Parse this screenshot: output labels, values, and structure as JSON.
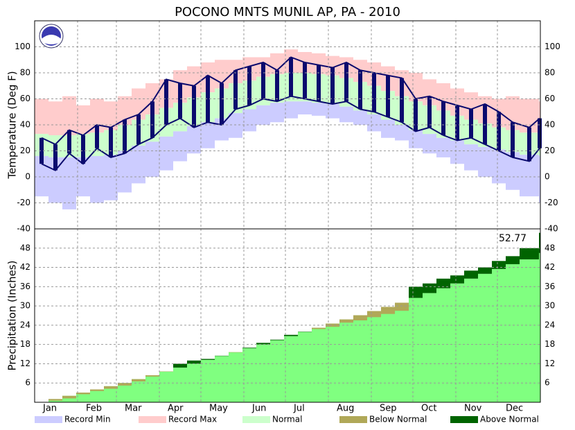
{
  "chart_data": {
    "type": "climate",
    "title": "POCONO MNTS MUNIL AP, PA - 2010",
    "x": [
      0,
      10,
      20,
      30,
      40,
      50,
      60,
      70,
      80,
      90,
      100,
      110,
      120,
      130,
      140,
      150,
      160,
      170,
      180,
      190,
      200,
      210,
      220,
      230,
      240,
      250,
      260,
      270,
      280,
      290,
      300,
      310,
      320,
      330,
      340,
      350,
      364
    ],
    "xlim": [
      0,
      365
    ],
    "xticks": [
      {
        "value": 0,
        "label": "Jan"
      },
      {
        "value": 31,
        "label": "Feb"
      },
      {
        "value": 59,
        "label": "Mar"
      },
      {
        "value": 90,
        "label": "Apr"
      },
      {
        "value": 120,
        "label": "May"
      },
      {
        "value": 151,
        "label": "Jun"
      },
      {
        "value": 181,
        "label": "Jul"
      },
      {
        "value": 212,
        "label": "Aug"
      },
      {
        "value": 243,
        "label": "Sep"
      },
      {
        "value": 273,
        "label": "Oct"
      },
      {
        "value": 304,
        "label": "Nov"
      },
      {
        "value": 334,
        "label": "Dec"
      }
    ],
    "temperature": {
      "ylabel": "Temperature (Deg F)",
      "ylim": [
        -40,
        120
      ],
      "yticks": [
        -40,
        -20,
        0,
        20,
        40,
        60,
        80,
        100
      ],
      "record_max": {
        "name": "Record Max",
        "color": "#ffcccc",
        "values": [
          60,
          58,
          62,
          55,
          60,
          58,
          62,
          68,
          72,
          75,
          82,
          85,
          88,
          90,
          90,
          92,
          92,
          95,
          98,
          96,
          95,
          93,
          92,
          90,
          88,
          85,
          82,
          80,
          75,
          72,
          68,
          65,
          62,
          60,
          62,
          60,
          58
        ]
      },
      "normal_high": {
        "color": "#ccffcc",
        "values": [
          33,
          32,
          32,
          33,
          34,
          36,
          40,
          44,
          48,
          53,
          57,
          61,
          65,
          68,
          72,
          74,
          77,
          79,
          80,
          80,
          79,
          78,
          76,
          73,
          70,
          66,
          62,
          58,
          55,
          51,
          47,
          44,
          41,
          38,
          36,
          34,
          33
        ]
      },
      "normal_low": {
        "color": "#ccccff",
        "values": [
          16,
          15,
          15,
          15,
          16,
          17,
          20,
          24,
          27,
          31,
          35,
          39,
          42,
          45,
          49,
          52,
          55,
          57,
          58,
          58,
          57,
          56,
          54,
          51,
          48,
          44,
          40,
          36,
          33,
          30,
          28,
          25,
          23,
          21,
          19,
          17,
          16
        ]
      },
      "record_min": {
        "name": "Record Min",
        "color": "#ccccff",
        "values": [
          -15,
          -20,
          -25,
          -15,
          -20,
          -18,
          -12,
          -5,
          0,
          5,
          12,
          18,
          22,
          28,
          30,
          35,
          40,
          42,
          45,
          48,
          47,
          45,
          42,
          40,
          35,
          30,
          28,
          22,
          18,
          15,
          10,
          5,
          0,
          -5,
          -10,
          -15,
          -20
        ]
      },
      "actual_high": {
        "color": "#0a0a6e",
        "values": [
          30,
          25,
          36,
          32,
          40,
          38,
          44,
          48,
          58,
          75,
          72,
          70,
          78,
          72,
          82,
          85,
          88,
          82,
          92,
          88,
          86,
          84,
          88,
          82,
          80,
          78,
          76,
          60,
          62,
          58,
          55,
          52,
          56,
          50,
          42,
          38,
          45
        ]
      },
      "actual_low": {
        "color": "#0a0a6e",
        "values": [
          10,
          5,
          18,
          10,
          22,
          15,
          18,
          25,
          30,
          40,
          45,
          38,
          42,
          40,
          52,
          55,
          60,
          58,
          62,
          60,
          58,
          56,
          58,
          52,
          50,
          46,
          42,
          35,
          38,
          32,
          28,
          30,
          25,
          20,
          15,
          12,
          22
        ]
      }
    },
    "precipitation": {
      "ylabel": "Precipitation (Inches)",
      "ylim": [
        0,
        54
      ],
      "yticks": [
        6,
        12,
        18,
        24,
        30,
        36,
        42,
        48
      ],
      "normal": {
        "name": "Normal",
        "color": "#80ff80",
        "values": [
          0,
          1.0,
          2.0,
          3.0,
          4.0,
          5.0,
          6.0,
          7.2,
          8.4,
          9.6,
          10.8,
          12.0,
          13.2,
          14.4,
          15.6,
          16.8,
          18.0,
          19.3,
          20.6,
          21.9,
          23.2,
          24.5,
          25.8,
          27.1,
          28.4,
          29.7,
          31.0,
          32.5,
          34.0,
          35.5,
          37.0,
          38.5,
          40.0,
          41.5,
          43.0,
          44.5,
          46.5
        ]
      },
      "observed": {
        "values": [
          0,
          0.5,
          1.2,
          2.5,
          3.5,
          4.2,
          5.2,
          6.5,
          8.0,
          9.5,
          12.0,
          13.0,
          13.5,
          14.5,
          15.5,
          17.0,
          18.5,
          19.5,
          21.0,
          22.0,
          22.8,
          23.5,
          24.8,
          25.5,
          26.5,
          27.5,
          28.5,
          36.0,
          37.0,
          38.5,
          39.5,
          41.0,
          42.0,
          44.0,
          45.5,
          48.0,
          52.77
        ]
      },
      "below_color": "#b0a858",
      "above_color": "#006400",
      "total_label": "52.77"
    },
    "legend": [
      {
        "name": "Record Min",
        "color": "#ccccff"
      },
      {
        "name": "Record Max",
        "color": "#ffcccc"
      },
      {
        "name": "Normal",
        "color": "#ccffcc"
      },
      {
        "name": "Below Normal",
        "color": "#b0a858"
      },
      {
        "name": "Above Normal",
        "color": "#006400"
      }
    ]
  }
}
